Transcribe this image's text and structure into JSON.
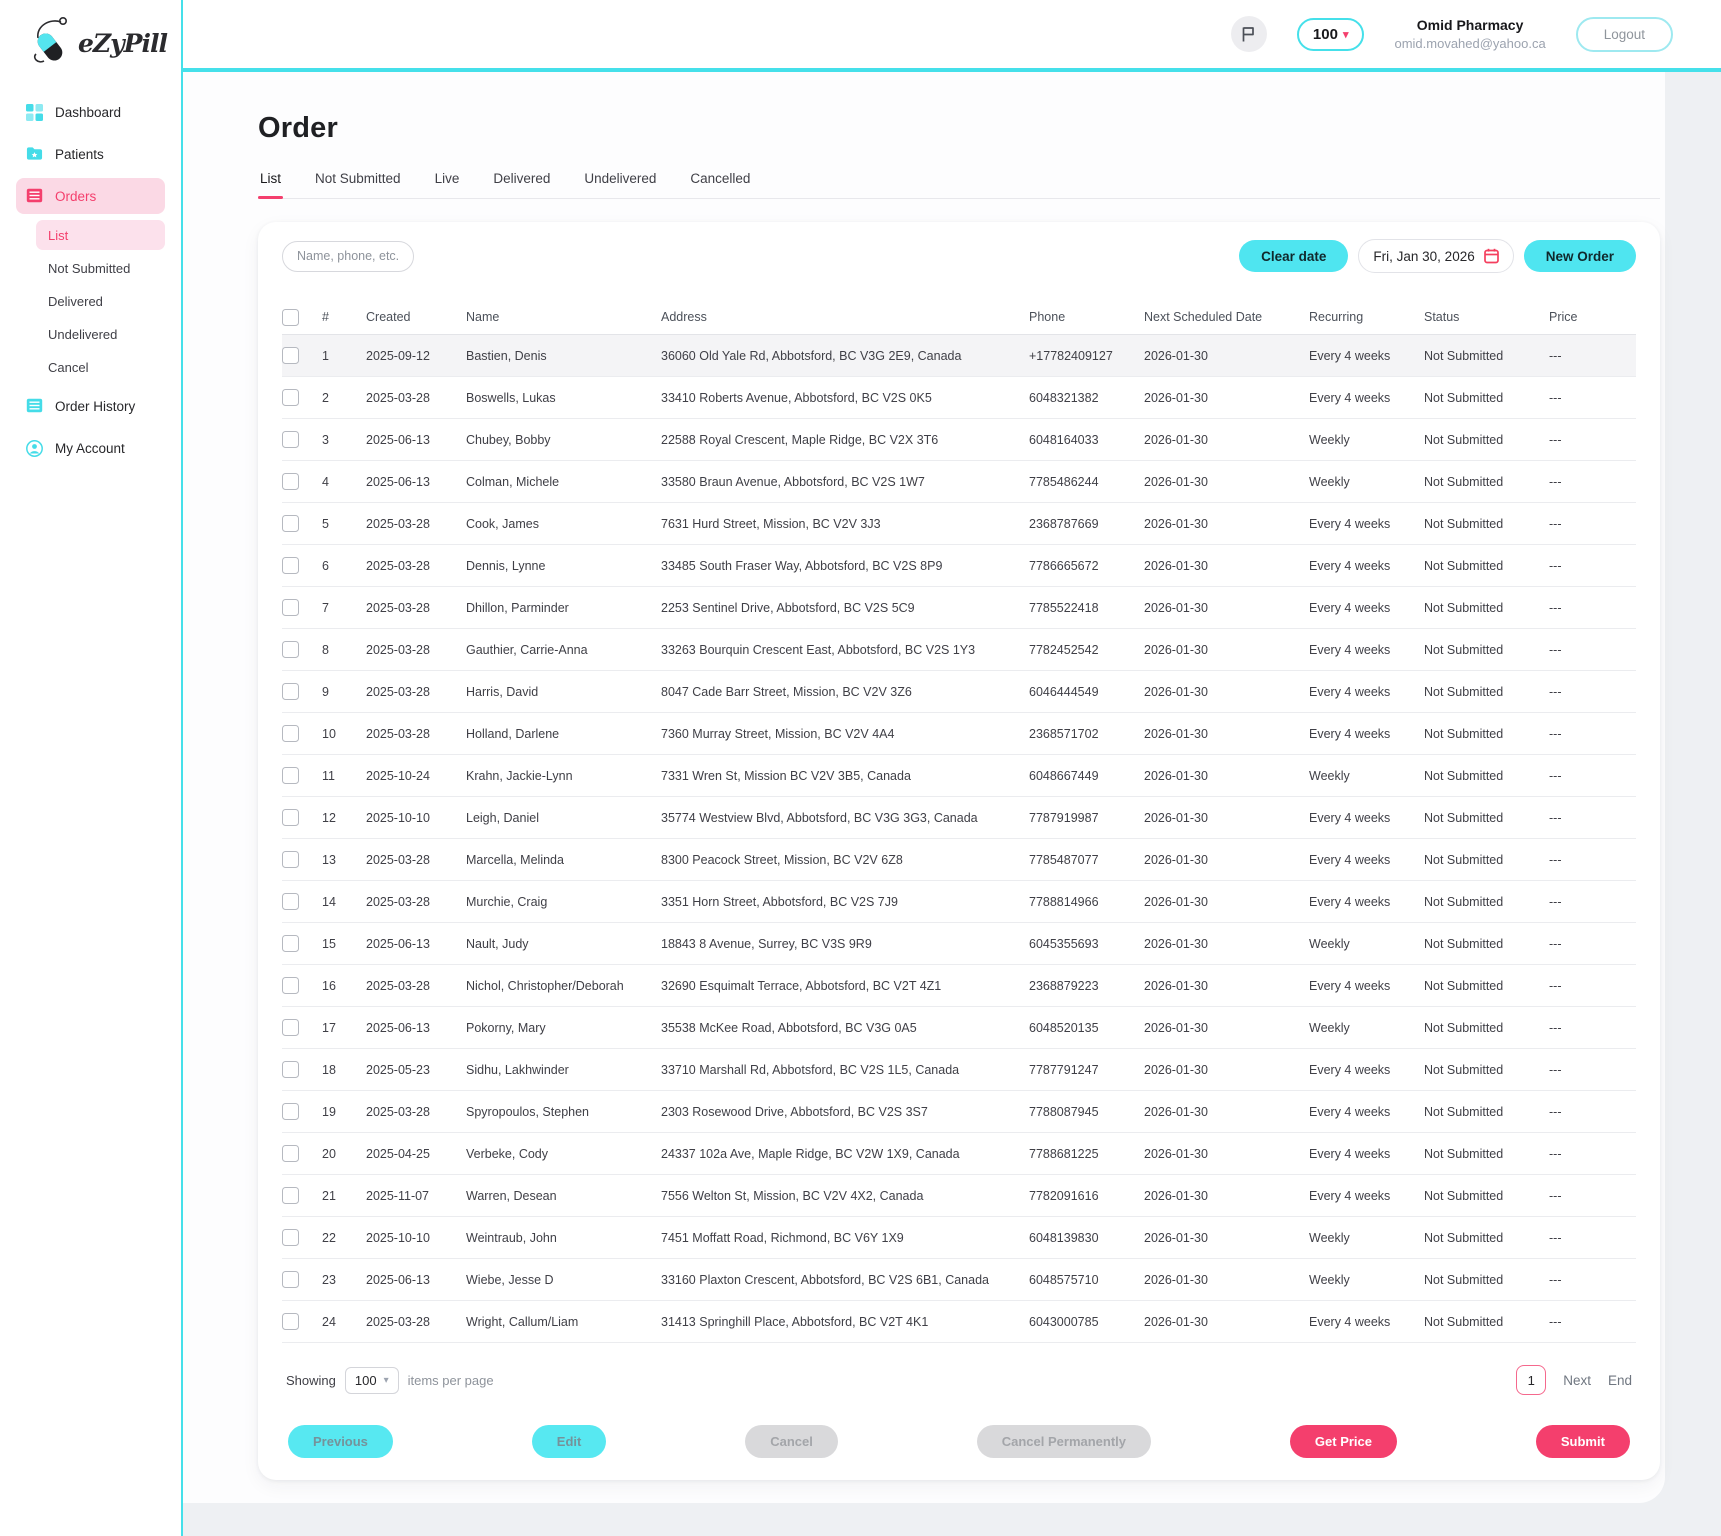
{
  "logo": {
    "text": "eZyPill"
  },
  "topbar": {
    "counter_value": "100",
    "account_name": "Omid Pharmacy",
    "account_email": "omid.movahed@yahoo.ca",
    "logout_label": "Logout"
  },
  "sidebar": {
    "items": [
      {
        "id": "dashboard",
        "label": "Dashboard",
        "icon": "dashboard-icon",
        "active": false
      },
      {
        "id": "patients",
        "label": "Patients",
        "icon": "patients-icon",
        "active": false
      },
      {
        "id": "orders",
        "label": "Orders",
        "icon": "orders-icon",
        "active": true,
        "children": [
          {
            "id": "list",
            "label": "List",
            "active": true
          },
          {
            "id": "not-submitted",
            "label": "Not Submitted",
            "active": false
          },
          {
            "id": "delivered",
            "label": "Delivered",
            "active": false
          },
          {
            "id": "undelivered",
            "label": "Undelivered",
            "active": false
          },
          {
            "id": "cancel",
            "label": "Cancel",
            "active": false
          }
        ]
      },
      {
        "id": "order-history",
        "label": "Order History",
        "icon": "history-icon",
        "active": false
      },
      {
        "id": "my-account",
        "label": "My Account",
        "icon": "account-icon",
        "active": false
      }
    ]
  },
  "page": {
    "title": "Order",
    "tabs": [
      "List",
      "Not Submitted",
      "Live",
      "Delivered",
      "Undelivered",
      "Cancelled"
    ],
    "active_tab": "List"
  },
  "filters": {
    "search_placeholder": "Name, phone, etc.",
    "clear_date_label": "Clear date",
    "date_value": "Fri, Jan 30, 2026",
    "new_order_label": "New Order"
  },
  "table": {
    "headers": [
      "#",
      "Created",
      "Name",
      "Address",
      "Phone",
      "Next Scheduled Date",
      "Recurring",
      "Status",
      "Price"
    ],
    "rows": [
      {
        "num": "1",
        "created": "2025-09-12",
        "name": "Bastien, Denis",
        "address": "36060 Old Yale Rd, Abbotsford, BC V3G 2E9, Canada",
        "phone": "+17782409127",
        "next": "2026-01-30",
        "recurring": "Every 4 weeks",
        "status": "Not Submitted",
        "price": "---",
        "highlighted": true
      },
      {
        "num": "2",
        "created": "2025-03-28",
        "name": "Boswells, Lukas",
        "address": "33410 Roberts Avenue, Abbotsford, BC V2S 0K5",
        "phone": "6048321382",
        "next": "2026-01-30",
        "recurring": "Every 4 weeks",
        "status": "Not Submitted",
        "price": "---",
        "highlighted": false
      },
      {
        "num": "3",
        "created": "2025-06-13",
        "name": "Chubey, Bobby",
        "address": "22588 Royal Crescent, Maple Ridge, BC V2X 3T6",
        "phone": "6048164033",
        "next": "2026-01-30",
        "recurring": "Weekly",
        "status": "Not Submitted",
        "price": "---",
        "highlighted": false
      },
      {
        "num": "4",
        "created": "2025-06-13",
        "name": "Colman, Michele",
        "address": "33580 Braun Avenue, Abbotsford, BC V2S 1W7",
        "phone": "7785486244",
        "next": "2026-01-30",
        "recurring": "Weekly",
        "status": "Not Submitted",
        "price": "---",
        "highlighted": false
      },
      {
        "num": "5",
        "created": "2025-03-28",
        "name": "Cook, James",
        "address": "7631 Hurd Street, Mission, BC V2V 3J3",
        "phone": "2368787669",
        "next": "2026-01-30",
        "recurring": "Every 4 weeks",
        "status": "Not Submitted",
        "price": "---",
        "highlighted": false
      },
      {
        "num": "6",
        "created": "2025-03-28",
        "name": "Dennis, Lynne",
        "address": "33485 South Fraser Way, Abbotsford, BC V2S 8P9",
        "phone": "7786665672",
        "next": "2026-01-30",
        "recurring": "Every 4 weeks",
        "status": "Not Submitted",
        "price": "---",
        "highlighted": false
      },
      {
        "num": "7",
        "created": "2025-03-28",
        "name": "Dhillon, Parminder",
        "address": "2253 Sentinel Drive, Abbotsford, BC V2S 5C9",
        "phone": "7785522418",
        "next": "2026-01-30",
        "recurring": "Every 4 weeks",
        "status": "Not Submitted",
        "price": "---",
        "highlighted": false
      },
      {
        "num": "8",
        "created": "2025-03-28",
        "name": "Gauthier, Carrie-Anna",
        "address": "33263 Bourquin Crescent East, Abbotsford, BC V2S 1Y3",
        "phone": "7782452542",
        "next": "2026-01-30",
        "recurring": "Every 4 weeks",
        "status": "Not Submitted",
        "price": "---",
        "highlighted": false
      },
      {
        "num": "9",
        "created": "2025-03-28",
        "name": "Harris, David",
        "address": "8047 Cade Barr Street, Mission, BC V2V 3Z6",
        "phone": "6046444549",
        "next": "2026-01-30",
        "recurring": "Every 4 weeks",
        "status": "Not Submitted",
        "price": "---",
        "highlighted": false
      },
      {
        "num": "10",
        "created": "2025-03-28",
        "name": "Holland, Darlene",
        "address": "7360 Murray Street, Mission, BC V2V 4A4",
        "phone": "2368571702",
        "next": "2026-01-30",
        "recurring": "Every 4 weeks",
        "status": "Not Submitted",
        "price": "---",
        "highlighted": false
      },
      {
        "num": "11",
        "created": "2025-10-24",
        "name": "Krahn, Jackie-Lynn",
        "address": "7331 Wren St, Mission BC V2V 3B5, Canada",
        "phone": "6048667449",
        "next": "2026-01-30",
        "recurring": "Weekly",
        "status": "Not Submitted",
        "price": "---",
        "highlighted": false
      },
      {
        "num": "12",
        "created": "2025-10-10",
        "name": "Leigh, Daniel",
        "address": "35774 Westview Blvd, Abbotsford, BC V3G 3G3, Canada",
        "phone": "7787919987",
        "next": "2026-01-30",
        "recurring": "Every 4 weeks",
        "status": "Not Submitted",
        "price": "---",
        "highlighted": false
      },
      {
        "num": "13",
        "created": "2025-03-28",
        "name": "Marcella, Melinda",
        "address": "8300 Peacock Street, Mission, BC V2V 6Z8",
        "phone": "7785487077",
        "next": "2026-01-30",
        "recurring": "Every 4 weeks",
        "status": "Not Submitted",
        "price": "---",
        "highlighted": false
      },
      {
        "num": "14",
        "created": "2025-03-28",
        "name": "Murchie, Craig",
        "address": "3351 Horn Street, Abbotsford, BC V2S 7J9",
        "phone": "7788814966",
        "next": "2026-01-30",
        "recurring": "Every 4 weeks",
        "status": "Not Submitted",
        "price": "---",
        "highlighted": false
      },
      {
        "num": "15",
        "created": "2025-06-13",
        "name": "Nault, Judy",
        "address": "18843 8 Avenue, Surrey, BC V3S 9R9",
        "phone": "6045355693",
        "next": "2026-01-30",
        "recurring": "Weekly",
        "status": "Not Submitted",
        "price": "---",
        "highlighted": false
      },
      {
        "num": "16",
        "created": "2025-03-28",
        "name": "Nichol, Christopher/Deborah",
        "address": "32690 Esquimalt Terrace, Abbotsford, BC V2T 4Z1",
        "phone": "2368879223",
        "next": "2026-01-30",
        "recurring": "Every 4 weeks",
        "status": "Not Submitted",
        "price": "---",
        "highlighted": false
      },
      {
        "num": "17",
        "created": "2025-06-13",
        "name": "Pokorny, Mary",
        "address": "35538 McKee Road, Abbotsford, BC V3G 0A5",
        "phone": "6048520135",
        "next": "2026-01-30",
        "recurring": "Weekly",
        "status": "Not Submitted",
        "price": "---",
        "highlighted": false
      },
      {
        "num": "18",
        "created": "2025-05-23",
        "name": "Sidhu, Lakhwinder",
        "address": "33710 Marshall Rd, Abbotsford, BC V2S 1L5, Canada",
        "phone": "7787791247",
        "next": "2026-01-30",
        "recurring": "Every 4 weeks",
        "status": "Not Submitted",
        "price": "---",
        "highlighted": false
      },
      {
        "num": "19",
        "created": "2025-03-28",
        "name": "Spyropoulos, Stephen",
        "address": "2303 Rosewood Drive, Abbotsford, BC V2S 3S7",
        "phone": "7788087945",
        "next": "2026-01-30",
        "recurring": "Every 4 weeks",
        "status": "Not Submitted",
        "price": "---",
        "highlighted": false
      },
      {
        "num": "20",
        "created": "2025-04-25",
        "name": "Verbeke, Cody",
        "address": "24337 102a Ave, Maple Ridge, BC V2W 1X9, Canada",
        "phone": "7788681225",
        "next": "2026-01-30",
        "recurring": "Every 4 weeks",
        "status": "Not Submitted",
        "price": "---",
        "highlighted": false
      },
      {
        "num": "21",
        "created": "2025-11-07",
        "name": "Warren, Desean",
        "address": "7556 Welton St, Mission, BC V2V 4X2, Canada",
        "phone": "7782091616",
        "next": "2026-01-30",
        "recurring": "Every 4 weeks",
        "status": "Not Submitted",
        "price": "---",
        "highlighted": false
      },
      {
        "num": "22",
        "created": "2025-10-10",
        "name": "Weintraub, John",
        "address": "7451 Moffatt Road, Richmond, BC V6Y 1X9",
        "phone": "6048139830",
        "next": "2026-01-30",
        "recurring": "Weekly",
        "status": "Not Submitted",
        "price": "---",
        "highlighted": false
      },
      {
        "num": "23",
        "created": "2025-06-13",
        "name": "Wiebe, Jesse D",
        "address": "33160 Plaxton Crescent, Abbotsford, BC V2S 6B1, Canada",
        "phone": "6048575710",
        "next": "2026-01-30",
        "recurring": "Weekly",
        "status": "Not Submitted",
        "price": "---",
        "highlighted": false
      },
      {
        "num": "24",
        "created": "2025-03-28",
        "name": "Wright, Callum/Liam",
        "address": "31413 Springhill Place, Abbotsford, BC V2T 4K1",
        "phone": "6043000785",
        "next": "2026-01-30",
        "recurring": "Every 4 weeks",
        "status": "Not Submitted",
        "price": "---",
        "highlighted": false
      }
    ]
  },
  "pagination": {
    "showing_label": "Showing",
    "per_page_value": "100",
    "items_label": "items per page",
    "current_page": "1",
    "next_label": "Next",
    "end_label": "End"
  },
  "actions": [
    {
      "id": "previous",
      "label": "Previous",
      "variant": "cyan"
    },
    {
      "id": "edit",
      "label": "Edit",
      "variant": "cyan"
    },
    {
      "id": "cancel",
      "label": "Cancel",
      "variant": "gray"
    },
    {
      "id": "cancel-permanently",
      "label": "Cancel Permanently",
      "variant": "gray"
    },
    {
      "id": "get-price",
      "label": "Get Price",
      "variant": "pink"
    },
    {
      "id": "submit",
      "label": "Submit",
      "variant": "pink"
    }
  ],
  "colors": {
    "accent_cyan": "#45e0ea",
    "accent_pink": "#f43f6d",
    "pink_light": "#fbd9e5"
  }
}
